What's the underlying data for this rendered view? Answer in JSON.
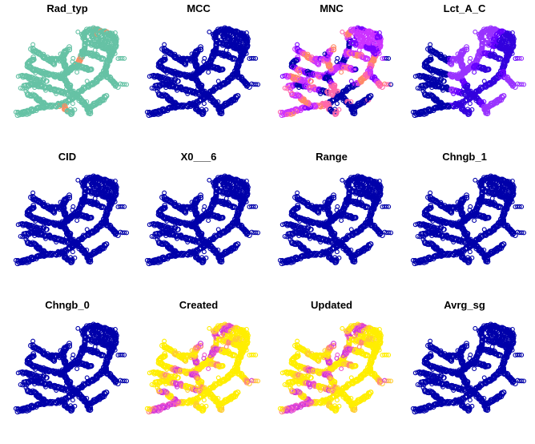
{
  "chart_data": {
    "type": "scatter",
    "layout": {
      "rows": 3,
      "cols": 4
    },
    "point_style": "open-circle",
    "panels": [
      {
        "title": "Rad_typ",
        "palette": [
          "#66c2a5",
          "#fc8d62"
        ]
      },
      {
        "title": "MCC",
        "palette": [
          "#0000aa"
        ]
      },
      {
        "title": "MNC",
        "palette": [
          "#0000aa",
          "#7a00ff",
          "#cc33ff",
          "#ff66aa",
          "#ff8866"
        ]
      },
      {
        "title": "Lct_A_C",
        "palette": [
          "#0000aa",
          "#3300dd",
          "#6600ff",
          "#9933ff"
        ]
      },
      {
        "title": "CID",
        "palette": [
          "#0000aa"
        ]
      },
      {
        "title": "X0___6",
        "palette": [
          "#0000aa"
        ]
      },
      {
        "title": "Range",
        "palette": [
          "#0000aa"
        ]
      },
      {
        "title": "Chngb_1",
        "palette": [
          "#0000aa"
        ]
      },
      {
        "title": "Chngb_0",
        "palette": [
          "#0000aa"
        ]
      },
      {
        "title": "Created",
        "palette": [
          "#ffee00",
          "#ffcc33",
          "#ff8877",
          "#ee55cc",
          "#cc33dd"
        ]
      },
      {
        "title": "Updated",
        "palette": [
          "#ffee00",
          "#ffcc33",
          "#ff8877",
          "#ee55cc",
          "#cc33dd"
        ]
      },
      {
        "title": "Avrg_sg",
        "palette": [
          "#0000aa"
        ]
      }
    ]
  }
}
